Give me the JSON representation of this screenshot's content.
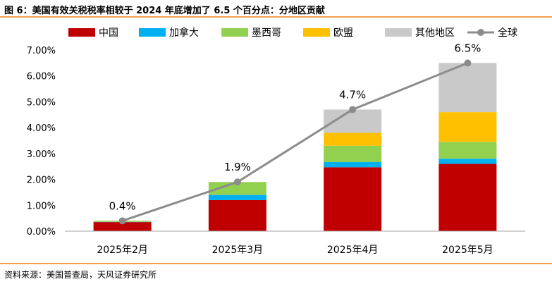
{
  "figure": {
    "title": "图 6：美国有效关税税率相较于 2024 年底增加了 6.5 个百分点：分地区贡献",
    "source": "资料来源：美国普查局，天风证券研究所"
  },
  "chart_data": {
    "type": "bar",
    "stacked": true,
    "categories": [
      "2025年2月",
      "2025年3月",
      "2025年4月",
      "2025年5月"
    ],
    "series": [
      {
        "name": "中国",
        "color": "#c00000",
        "values": [
          0.35,
          1.2,
          2.47,
          2.6
        ]
      },
      {
        "name": "加拿大",
        "color": "#00b0f0",
        "values": [
          0.01,
          0.2,
          0.2,
          0.2
        ]
      },
      {
        "name": "墨西哥",
        "color": "#92d050",
        "values": [
          0.04,
          0.5,
          0.63,
          0.65
        ]
      },
      {
        "name": "欧盟",
        "color": "#ffc000",
        "values": [
          0,
          0,
          0.5,
          1.15
        ]
      },
      {
        "name": "其他地区",
        "color": "#c9c9c9",
        "values": [
          0,
          0,
          0.9,
          1.9
        ]
      }
    ],
    "line": {
      "name": "全球",
      "color": "#8c8c8c",
      "values": [
        0.4,
        1.9,
        4.7,
        6.5
      ]
    },
    "data_labels": [
      "0.4%",
      "1.9%",
      "4.7%",
      "6.5%"
    ],
    "yticks": [
      "0.00%",
      "1.00%",
      "2.00%",
      "3.00%",
      "4.00%",
      "5.00%",
      "6.00%",
      "7.00%"
    ],
    "ylim": [
      0,
      7
    ],
    "legend_position": "top",
    "grid": false
  }
}
